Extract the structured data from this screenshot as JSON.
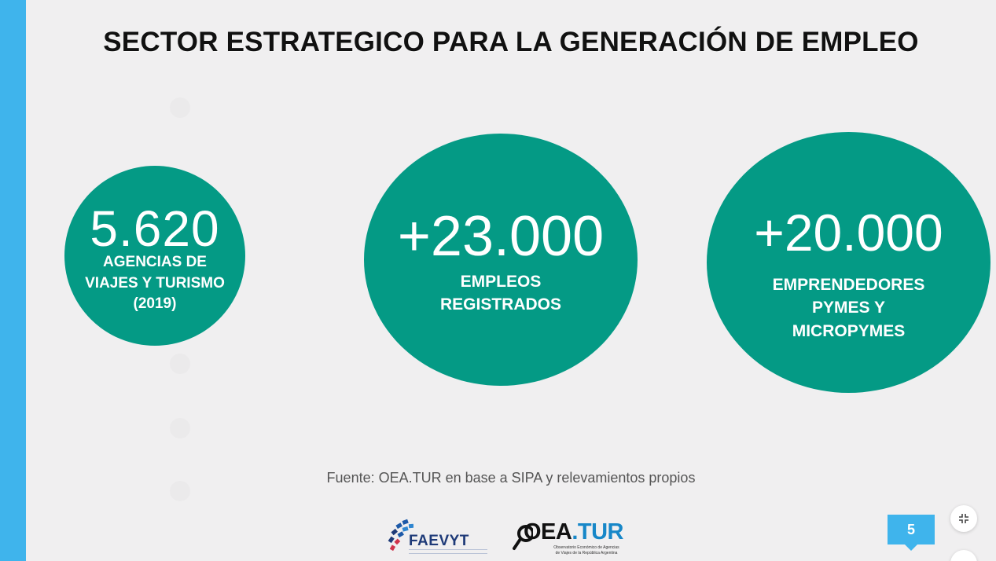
{
  "slide": {
    "title": "SECTOR ESTRATEGICO PARA LA GENERACIÓN DE EMPLEO",
    "accent_color": "#3fb4ec",
    "circle_color": "#049a85"
  },
  "stats": [
    {
      "value": "5.620",
      "label_lines": [
        "AGENCIAS DE",
        "VIAJES Y TURISMO",
        "(2019)"
      ]
    },
    {
      "value": "+23.000",
      "label_lines": [
        "EMPLEOS",
        "REGISTRADOS"
      ]
    },
    {
      "value": "+20.000",
      "label_lines": [
        "EMPRENDEDORES",
        "PYMES Y",
        "MICROPYMES"
      ]
    }
  ],
  "source": "Fuente: OEA.TUR en base a SIPA y relevamientos propios",
  "logos": {
    "faevyt": "FAEVYT",
    "oea_main": "OEA",
    "oea_dot_tur": ".TUR",
    "oea_subtitle_1": "Observatorio Económico de Agencias",
    "oea_subtitle_2": "de Viajes de la República Argentina"
  },
  "page_number": "5",
  "controls": {
    "exit_fullscreen_icon": "collapse-icon"
  }
}
